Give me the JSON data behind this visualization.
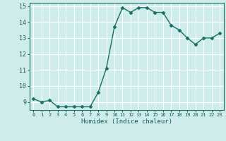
{
  "x": [
    0,
    1,
    2,
    3,
    4,
    5,
    6,
    7,
    8,
    9,
    10,
    11,
    12,
    13,
    14,
    15,
    16,
    17,
    18,
    19,
    20,
    21,
    22,
    23
  ],
  "y": [
    9.2,
    9.0,
    9.1,
    8.7,
    8.7,
    8.7,
    8.7,
    8.7,
    9.6,
    11.1,
    13.7,
    14.9,
    14.6,
    14.9,
    14.9,
    14.6,
    14.6,
    13.8,
    13.5,
    13.0,
    12.6,
    13.0,
    13.0,
    13.3
  ],
  "xlabel": "Humidex (Indice chaleur)",
  "ylim": [
    8.5,
    15.2
  ],
  "xlim": [
    -0.5,
    23.5
  ],
  "yticks": [
    9,
    10,
    11,
    12,
    13,
    14,
    15
  ],
  "xticks": [
    0,
    1,
    2,
    3,
    4,
    5,
    6,
    7,
    8,
    9,
    10,
    11,
    12,
    13,
    14,
    15,
    16,
    17,
    18,
    19,
    20,
    21,
    22,
    23
  ],
  "line_color": "#1a6e64",
  "marker": "D",
  "marker_size": 2.5,
  "bg_color": "#cdecea",
  "grid_color": "#ffffff",
  "tick_label_color": "#1a5a5a",
  "xlabel_color": "#1a5a5a",
  "line_width": 1.0
}
